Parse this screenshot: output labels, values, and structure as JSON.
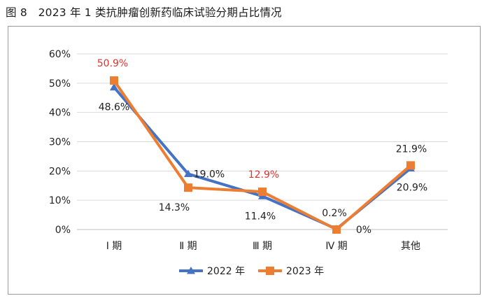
{
  "figure": {
    "title": "图 8　2023 年 1 类抗肿瘤创新药临床试验分期占比情况"
  },
  "chart_data": {
    "type": "line",
    "categories": [
      "Ⅰ 期",
      "Ⅱ 期",
      "Ⅲ 期",
      "Ⅳ 期",
      "其他"
    ],
    "ylim": [
      0,
      60
    ],
    "yticks": [
      "0%",
      "10%",
      "20%",
      "30%",
      "40%",
      "50%",
      "60%"
    ],
    "grid": true,
    "legend_position": "bottom",
    "series": [
      {
        "name": "2022 年",
        "values": [
          48.6,
          19.0,
          11.4,
          0.2,
          20.9
        ],
        "labels": [
          "48.6%",
          "19.0%",
          "11.4%",
          "0.2%",
          "20.9%"
        ],
        "color": "#4472c4",
        "marker": "triangle"
      },
      {
        "name": "2023 年",
        "values": [
          50.9,
          14.3,
          12.9,
          0,
          21.9
        ],
        "labels": [
          "50.9%",
          "14.3%",
          "12.9%",
          "0%",
          "21.9%"
        ],
        "color": "#ed7d31",
        "marker": "square",
        "highlight_color": "#e0322e",
        "highlight_labels": [
          0,
          2
        ]
      }
    ]
  }
}
